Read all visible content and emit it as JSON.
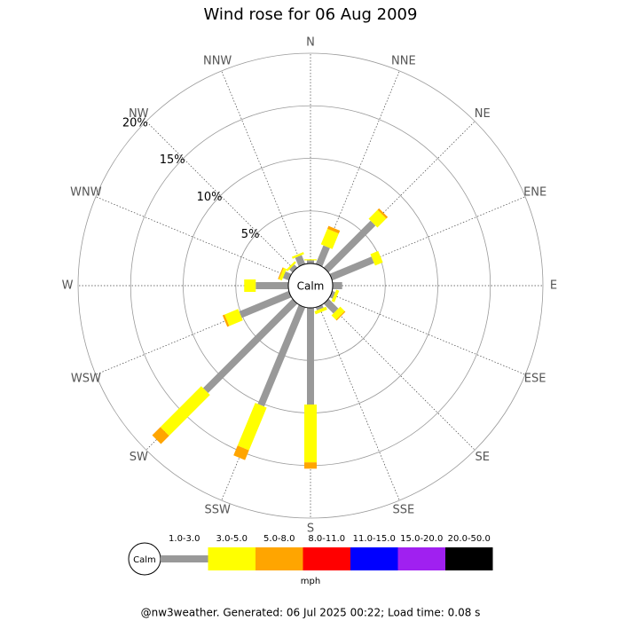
{
  "chart_data": {
    "type": "windrose",
    "title": "Wind rose for 06 Aug 2009",
    "categories": [
      "N",
      "NNE",
      "NE",
      "ENE",
      "E",
      "ESE",
      "SE",
      "SSE",
      "S",
      "SSW",
      "SW",
      "WSW",
      "W",
      "WNW",
      "NW",
      "NNW"
    ],
    "calm_label": "Calm",
    "unit_label": "mph",
    "footer": "@nw3weather. Generated: 06 Jul 2025 00:22; Load time: 0.08 s",
    "rlim": [
      0,
      20
    ],
    "rticks": [
      {
        "value": 5,
        "label": "5%"
      },
      {
        "value": 10,
        "label": "10%"
      },
      {
        "value": 15,
        "label": "15%"
      },
      {
        "value": 20,
        "label": "20%"
      }
    ],
    "series": [
      {
        "name": "1.0-3.0",
        "color": "#999999",
        "values": [
          0.3,
          1.9,
          6.3,
          4.3,
          0.9,
          0.3,
          1.3,
          0.3,
          9.2,
          10.2,
          12.0,
          5.1,
          3.1,
          0.6,
          0.4,
          0.9
        ]
      },
      {
        "name": "3.0-5.0",
        "color": "#ffff00",
        "values": [
          0.1,
          1.6,
          1.2,
          0.8,
          0,
          0.3,
          0.6,
          0.3,
          5.5,
          4.4,
          5.5,
          1.4,
          1.1,
          0.3,
          0.2,
          0.2
        ]
      },
      {
        "name": "5.0-8.0",
        "color": "#ffa500",
        "values": [
          0,
          0.3,
          0.2,
          0,
          0,
          0,
          0.1,
          0,
          0.6,
          1.0,
          1.1,
          0.2,
          0,
          0.1,
          0,
          0
        ]
      },
      {
        "name": "8.0-11.0",
        "color": "#ff0000",
        "values": [
          0,
          0,
          0,
          0,
          0,
          0,
          0,
          0,
          0,
          0,
          0,
          0,
          0,
          0,
          0,
          0
        ]
      },
      {
        "name": "11.0-15.0",
        "color": "#0000ff",
        "values": [
          0,
          0,
          0,
          0,
          0,
          0,
          0,
          0,
          0,
          0,
          0,
          0,
          0,
          0,
          0,
          0
        ]
      },
      {
        "name": "15.0-20.0",
        "color": "#a020f0",
        "values": [
          0,
          0,
          0,
          0,
          0,
          0,
          0,
          0,
          0,
          0,
          0,
          0,
          0,
          0,
          0,
          0
        ]
      },
      {
        "name": "20.0-50.0",
        "color": "#000000",
        "values": [
          0,
          0,
          0,
          0,
          0,
          0,
          0,
          0,
          0,
          0,
          0,
          0,
          0,
          0,
          0,
          0
        ]
      }
    ]
  }
}
